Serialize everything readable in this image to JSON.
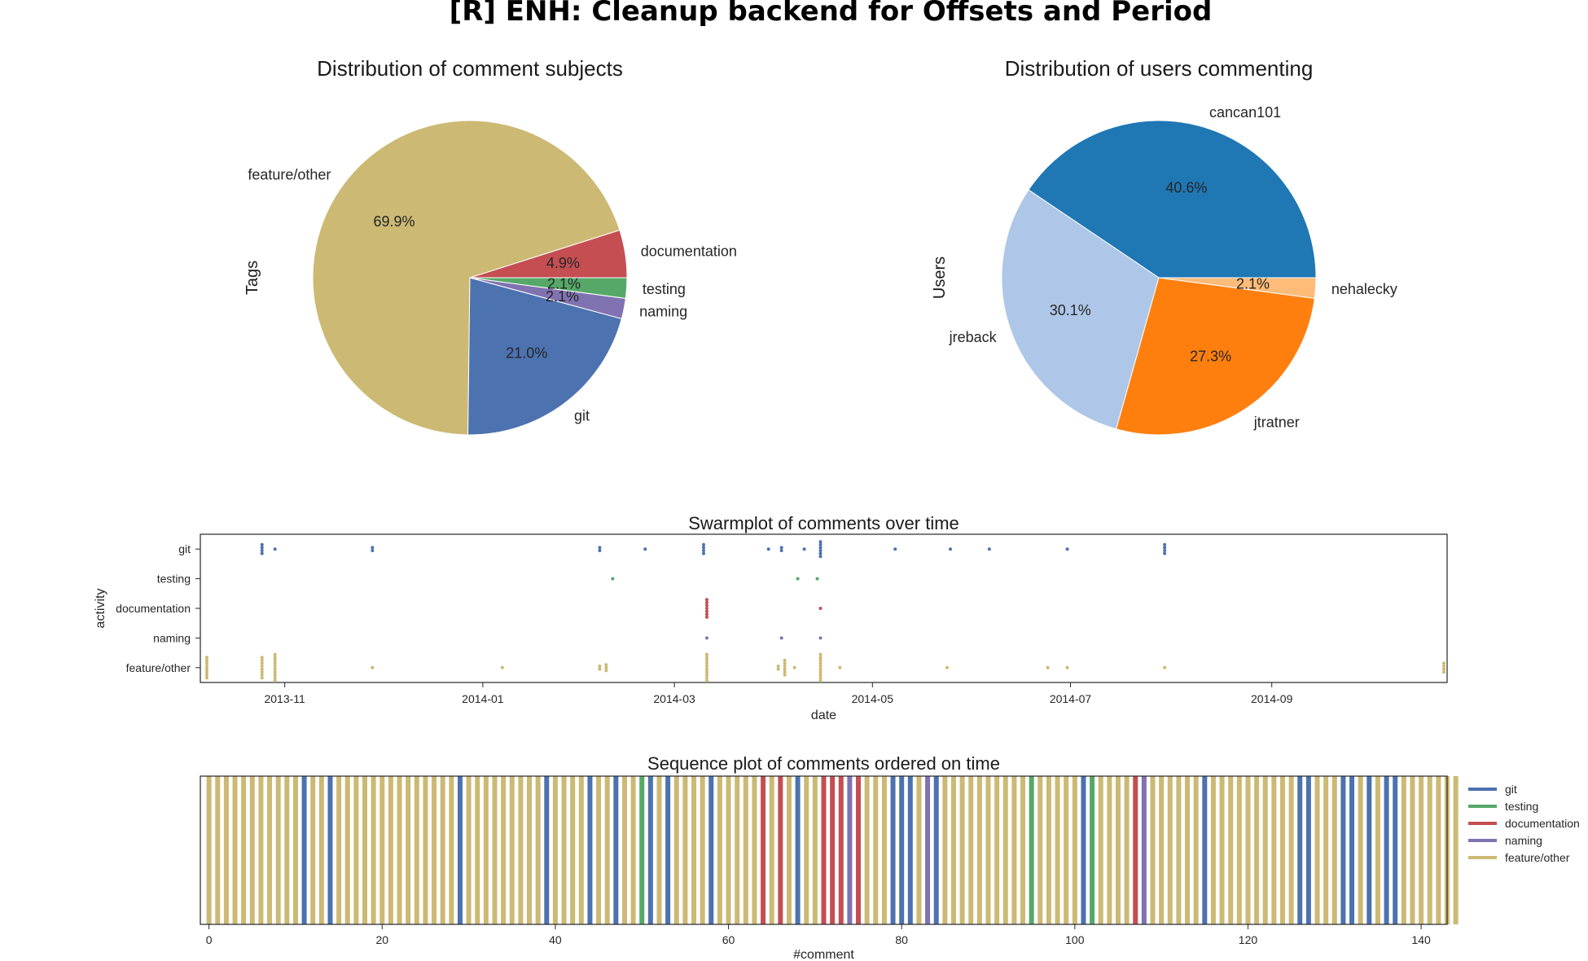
{
  "title": "[R] ENH: Cleanup backend for Offsets and Period",
  "colors": {
    "git": "#4c72b0",
    "testing": "#55a868",
    "documentation": "#c44e52",
    "naming": "#8172b2",
    "feature_other": "#ccb974",
    "cancan101": "#1f77b4",
    "jreback": "#aec7e8",
    "jtratner": "#ff7f0e",
    "nehalecky": "#ffbb78"
  },
  "chart_data": [
    {
      "type": "pie",
      "title": "Distribution of comment subjects",
      "ylabel": "Tags",
      "slices": [
        {
          "label": "documentation",
          "value": 4.9,
          "pct_label": "4.9%",
          "color": "#c44e52"
        },
        {
          "label": "feature/other",
          "value": 69.9,
          "pct_label": "69.9%",
          "color": "#ccb974"
        },
        {
          "label": "git",
          "value": 21.0,
          "pct_label": "21.0%",
          "color": "#4c72b0"
        },
        {
          "label": "naming",
          "value": 2.1,
          "pct_label": "2.1%",
          "color": "#8172b2"
        },
        {
          "label": "testing",
          "value": 2.1,
          "pct_label": "2.1%",
          "color": "#55a868"
        }
      ]
    },
    {
      "type": "pie",
      "title": "Distribution of users commenting",
      "ylabel": "Users",
      "slices": [
        {
          "label": "cancan101",
          "value": 40.6,
          "pct_label": "40.6%",
          "color": "#1f77b4"
        },
        {
          "label": "jreback",
          "value": 30.1,
          "pct_label": "30.1%",
          "color": "#aec7e8"
        },
        {
          "label": "jtratner",
          "value": 27.3,
          "pct_label": "27.3%",
          "color": "#ff7f0e"
        },
        {
          "label": "nehalecky",
          "value": 2.1,
          "pct_label": "2.1%",
          "color": "#ffbb78"
        }
      ]
    },
    {
      "type": "scatter",
      "title": "Swarmplot of comments over time",
      "xlabel": "date",
      "ylabel": "activity",
      "categories": [
        "git",
        "testing",
        "documentation",
        "naming",
        "feature/other"
      ],
      "x_ticks": [
        "2013-11",
        "2014-01",
        "2014-03",
        "2014-05",
        "2014-07",
        "2014-09"
      ],
      "xlim": [
        "2013-10-06",
        "2014-10-25"
      ],
      "series": [
        {
          "name": "git",
          "color": "#4c72b0",
          "points": [
            [
              "2013-10-25",
              4
            ],
            [
              "2013-10-29",
              1
            ],
            [
              "2013-11-28",
              2
            ],
            [
              "2014-02-06",
              2
            ],
            [
              "2014-02-20",
              1
            ],
            [
              "2014-03-10",
              4
            ],
            [
              "2014-03-30",
              1
            ],
            [
              "2014-04-03",
              2
            ],
            [
              "2014-04-10",
              1
            ],
            [
              "2014-04-15",
              6
            ],
            [
              "2014-05-08",
              1
            ],
            [
              "2014-05-25",
              1
            ],
            [
              "2014-06-06",
              1
            ],
            [
              "2014-06-30",
              1
            ],
            [
              "2014-07-30",
              4
            ]
          ]
        },
        {
          "name": "testing",
          "color": "#55a868",
          "points": [
            [
              "2014-02-10",
              1
            ],
            [
              "2014-04-08",
              1
            ],
            [
              "2014-04-14",
              1
            ]
          ]
        },
        {
          "name": "documentation",
          "color": "#c44e52",
          "points": [
            [
              "2014-03-11",
              7
            ],
            [
              "2014-04-15",
              1
            ]
          ]
        },
        {
          "name": "naming",
          "color": "#8172b2",
          "points": [
            [
              "2014-03-11",
              1
            ],
            [
              "2014-04-03",
              1
            ],
            [
              "2014-04-15",
              1
            ]
          ]
        },
        {
          "name": "feature/other",
          "color": "#ccb974",
          "points": [
            [
              "2013-10-08",
              8
            ],
            [
              "2013-10-25",
              8
            ],
            [
              "2013-10-29",
              10
            ],
            [
              "2013-11-28",
              1
            ],
            [
              "2014-01-07",
              1
            ],
            [
              "2014-02-06",
              2
            ],
            [
              "2014-02-08",
              3
            ],
            [
              "2014-03-11",
              10
            ],
            [
              "2014-04-02",
              2
            ],
            [
              "2014-04-04",
              6
            ],
            [
              "2014-04-07",
              1
            ],
            [
              "2014-04-15",
              10
            ],
            [
              "2014-04-21",
              1
            ],
            [
              "2014-05-24",
              1
            ],
            [
              "2014-06-24",
              1
            ],
            [
              "2014-06-30",
              1
            ],
            [
              "2014-07-30",
              1
            ],
            [
              "2014-10-24",
              4
            ]
          ]
        }
      ]
    },
    {
      "type": "bar",
      "title": "Sequence plot of comments ordered on time",
      "xlabel": "#comment",
      "x_ticks": [
        0,
        20,
        40,
        60,
        80,
        100,
        120,
        140
      ],
      "xlim": [
        -1,
        143
      ],
      "legend": {
        "location": "right",
        "entries": [
          "git",
          "testing",
          "documentation",
          "naming",
          "feature/other"
        ]
      },
      "sequence_codes": "FFFFFFFFFFFGFFGFFFFFFFFFFFFFFGFFFFFFFFFGFFFFGFFGFFTGFGFFFFGFFFFFDFDFGFFDDDNDFFFGGGFNGFFFFFFFFFFTFFFFFGTFFFFDNFFFFFFGFFFFFFFFFFGGFFFGGFGFGGFFFFFFF",
      "sequence_key": {
        "G": "git",
        "T": "testing",
        "D": "documentation",
        "N": "naming",
        "F": "feature/other"
      }
    }
  ]
}
